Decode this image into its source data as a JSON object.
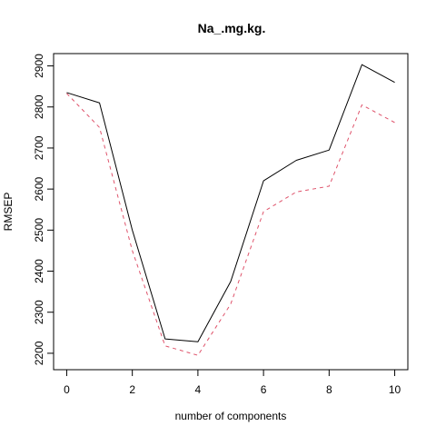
{
  "chart_data": {
    "type": "line",
    "title": "Na_.mg.kg.",
    "xlabel": "number of components",
    "ylabel": "RMSEP",
    "x": [
      0,
      1,
      2,
      3,
      4,
      5,
      6,
      7,
      8,
      9,
      10
    ],
    "xlim": [
      -0.4,
      10.4
    ],
    "ylim": [
      2160,
      2930
    ],
    "xticks": [
      0,
      2,
      4,
      6,
      8,
      10
    ],
    "yticks": [
      2200,
      2300,
      2400,
      2500,
      2600,
      2700,
      2800,
      2900
    ],
    "grid": false,
    "series": [
      {
        "values": [
          2835,
          2810,
          2500,
          2235,
          2228,
          2375,
          2620,
          2670,
          2695,
          2903,
          2860
        ],
        "color": "#000000",
        "style": "solid"
      },
      {
        "values": [
          2833,
          2750,
          2450,
          2218,
          2195,
          2320,
          2545,
          2593,
          2607,
          2805,
          2762
        ],
        "color": "#DF536B",
        "style": "dashed"
      }
    ]
  }
}
